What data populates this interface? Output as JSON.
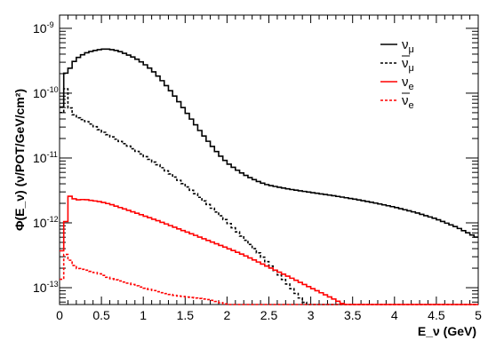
{
  "chart_data": {
    "type": "line",
    "style": "step-histogram",
    "xlabel": "E_ν (GeV)",
    "ylabel": "Φ(E_ν) (ν/POT/GeV/cm²)",
    "xlim": [
      0,
      5
    ],
    "ylim": [
      5.5e-14,
      1.6e-09
    ],
    "yscale": "log",
    "grid": false,
    "legend_position": "top-right",
    "x_ticks": [
      0,
      0.5,
      1,
      1.5,
      2,
      2.5,
      3,
      3.5,
      4,
      4.5,
      5
    ],
    "x_tick_labels": [
      "0",
      "0.5",
      "1",
      "1.5",
      "2",
      "2.5",
      "3",
      "3.5",
      "4",
      "4.5",
      "5"
    ],
    "y_ticks": [
      1e-13,
      1e-12,
      1e-11,
      1e-10,
      1e-09
    ],
    "y_tick_labels": [
      {
        "base": "10",
        "exp": "-13"
      },
      {
        "base": "10",
        "exp": "-12"
      },
      {
        "base": "10",
        "exp": "-11"
      },
      {
        "base": "10",
        "exp": "-10"
      },
      {
        "base": "10",
        "exp": "-9"
      }
    ],
    "series": [
      {
        "name": "ν_μ",
        "legend_base": "ν",
        "legend_sub": "μ",
        "legend_bar": false,
        "color": "#000000",
        "dashed": false,
        "points": [
          [
            0.0,
            4.5e-11
          ],
          [
            0.03,
            6.5e-11
          ],
          [
            0.06,
            2e-10
          ],
          [
            0.1,
            2.1e-10
          ],
          [
            0.15,
            2.8e-10
          ],
          [
            0.2,
            3.4e-10
          ],
          [
            0.3,
            4.1e-10
          ],
          [
            0.4,
            4.5e-10
          ],
          [
            0.5,
            4.75e-10
          ],
          [
            0.55,
            4.8e-10
          ],
          [
            0.6,
            4.75e-10
          ],
          [
            0.7,
            4.5e-10
          ],
          [
            0.8,
            4e-10
          ],
          [
            0.9,
            3.5e-10
          ],
          [
            1.0,
            2.9e-10
          ],
          [
            1.1,
            2.3e-10
          ],
          [
            1.2,
            1.7e-10
          ],
          [
            1.3,
            1.2e-10
          ],
          [
            1.4,
            8.2e-11
          ],
          [
            1.5,
            5.4e-11
          ],
          [
            1.6,
            3.6e-11
          ],
          [
            1.7,
            2.4e-11
          ],
          [
            1.8,
            1.65e-11
          ],
          [
            1.9,
            1.15e-11
          ],
          [
            2.0,
            8.5e-12
          ],
          [
            2.1,
            6.8e-12
          ],
          [
            2.2,
            5.6e-12
          ],
          [
            2.3,
            4.8e-12
          ],
          [
            2.4,
            4.2e-12
          ],
          [
            2.5,
            3.8e-12
          ],
          [
            2.75,
            3.3e-12
          ],
          [
            3.0,
            2.95e-12
          ],
          [
            3.25,
            2.65e-12
          ],
          [
            3.5,
            2.35e-12
          ],
          [
            3.75,
            2.05e-12
          ],
          [
            4.0,
            1.75e-12
          ],
          [
            4.25,
            1.45e-12
          ],
          [
            4.5,
            1.15e-12
          ],
          [
            4.75,
            8.5e-13
          ],
          [
            5.0,
            5.8e-13
          ]
        ]
      },
      {
        "name": "ν̄_μ",
        "legend_base": "ν",
        "legend_sub": "μ",
        "legend_bar": true,
        "color": "#000000",
        "dashed": true,
        "points": [
          [
            0.0,
            2e-11
          ],
          [
            0.02,
            4e-11
          ],
          [
            0.04,
            1e-10
          ],
          [
            0.06,
            1.4e-10
          ],
          [
            0.08,
            1.1e-10
          ],
          [
            0.1,
            7e-11
          ],
          [
            0.15,
            5e-11
          ],
          [
            0.2,
            4.3e-11
          ],
          [
            0.3,
            3.8e-11
          ],
          [
            0.4,
            3.2e-11
          ],
          [
            0.5,
            2.6e-11
          ],
          [
            0.6,
            2.2e-11
          ],
          [
            0.8,
            1.6e-11
          ],
          [
            1.0,
            1.1e-11
          ],
          [
            1.2,
            7.5e-12
          ],
          [
            1.4,
            4.8e-12
          ],
          [
            1.6,
            3e-12
          ],
          [
            1.8,
            1.8e-12
          ],
          [
            2.0,
            1.05e-12
          ],
          [
            2.2,
            5.8e-13
          ],
          [
            2.4,
            3.2e-13
          ],
          [
            2.6,
            1.7e-13
          ],
          [
            2.75,
            1.05e-13
          ],
          [
            2.85,
            7.5e-14
          ],
          [
            2.95,
            5.5e-14
          ]
        ]
      },
      {
        "name": "ν_e",
        "legend_base": "ν",
        "legend_sub": "e",
        "legend_bar": false,
        "color": "#ff0000",
        "dashed": false,
        "points": [
          [
            0.0,
            1e-13
          ],
          [
            0.02,
            3.5e-13
          ],
          [
            0.06,
            5.5e-13
          ],
          [
            0.08,
            1.3e-12
          ],
          [
            0.1,
            2.7e-12
          ],
          [
            0.15,
            2.45e-12
          ],
          [
            0.2,
            2.25e-12
          ],
          [
            0.3,
            2.3e-12
          ],
          [
            0.4,
            2.2e-12
          ],
          [
            0.5,
            2.1e-12
          ],
          [
            0.6,
            1.95e-12
          ],
          [
            0.8,
            1.6e-12
          ],
          [
            1.0,
            1.3e-12
          ],
          [
            1.2,
            1.05e-12
          ],
          [
            1.4,
            8.3e-13
          ],
          [
            1.6,
            6.6e-13
          ],
          [
            1.8,
            5.2e-13
          ],
          [
            2.0,
            4.1e-13
          ],
          [
            2.2,
            3.2e-13
          ],
          [
            2.4,
            2.4e-13
          ],
          [
            2.6,
            1.8e-13
          ],
          [
            2.8,
            1.35e-13
          ],
          [
            3.0,
            1e-13
          ],
          [
            3.2,
            7.5e-14
          ],
          [
            3.4,
            5.5e-14
          ]
        ]
      },
      {
        "name": "ν̄_e",
        "legend_base": "ν",
        "legend_sub": "e",
        "legend_bar": true,
        "color": "#ff0000",
        "dashed": true,
        "points": [
          [
            0.0,
            7e-14
          ],
          [
            0.04,
            2e-13
          ],
          [
            0.08,
            3.5e-13
          ],
          [
            0.12,
            2.7e-13
          ],
          [
            0.2,
            2e-13
          ],
          [
            0.3,
            1.9e-13
          ],
          [
            0.4,
            1.75e-13
          ],
          [
            0.5,
            1.6e-13
          ],
          [
            0.6,
            1.4e-13
          ],
          [
            0.8,
            1.2e-13
          ],
          [
            1.0,
            1e-13
          ],
          [
            1.2,
            8.5e-14
          ],
          [
            1.4,
            7.5e-14
          ],
          [
            1.6,
            7e-14
          ],
          [
            1.8,
            6.5e-14
          ],
          [
            1.9,
            6e-14
          ],
          [
            2.0,
            5.5e-14
          ]
        ]
      }
    ]
  }
}
